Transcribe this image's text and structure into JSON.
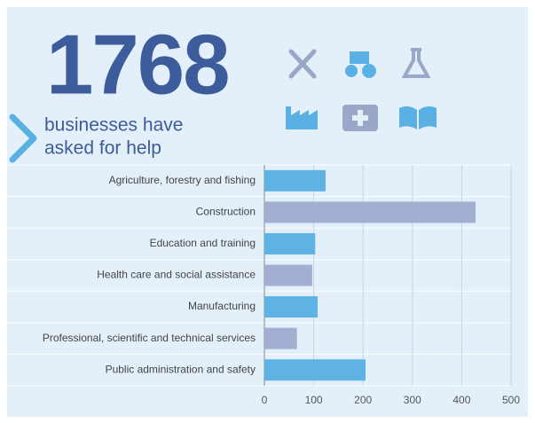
{
  "chart_data": {
    "type": "barh",
    "headline": "1768",
    "subtitle": [
      "businesses have",
      "asked for help"
    ],
    "categories": [
      "Agriculture, forestry and fishing",
      "Construction",
      "Education and training",
      "Health care and social assistance",
      "Manufacturing",
      "Professional, scientific and technical services",
      "Public administration and safety"
    ],
    "values": [
      124,
      428,
      103,
      97,
      108,
      66,
      205
    ],
    "colors": [
      "#5eb3e4",
      "#a3afd2",
      "#5eb3e4",
      "#a3afd2",
      "#5eb3e4",
      "#a3afd2",
      "#5eb3e4"
    ],
    "xlim": [
      0,
      500
    ],
    "xticks": [
      0,
      100,
      200,
      300,
      400,
      500
    ],
    "grid": true
  }
}
